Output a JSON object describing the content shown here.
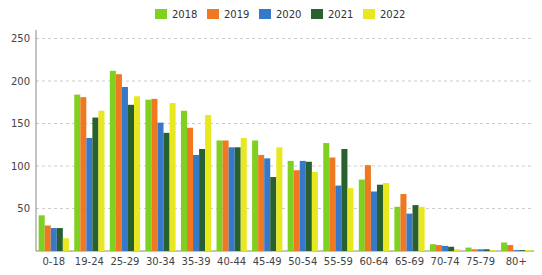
{
  "chart_data": {
    "type": "bar",
    "categories": [
      "0-18",
      "19-24",
      "25-29",
      "30-34",
      "35-39",
      "40-44",
      "45-49",
      "50-54",
      "55-59",
      "60-64",
      "65-69",
      "70-74",
      "75-79",
      "80+"
    ],
    "series": [
      {
        "name": "2018",
        "color": "#7FD020",
        "values": [
          42,
          184,
          212,
          178,
          165,
          130,
          130,
          106,
          127,
          84,
          52,
          8,
          4,
          10
        ]
      },
      {
        "name": "2019",
        "color": "#F07820",
        "values": [
          30,
          181,
          208,
          179,
          145,
          130,
          113,
          95,
          110,
          101,
          67,
          7,
          2,
          7
        ]
      },
      {
        "name": "2020",
        "color": "#3878C8",
        "values": [
          27,
          133,
          193,
          151,
          113,
          122,
          109,
          106,
          77,
          70,
          44,
          6,
          2,
          1
        ]
      },
      {
        "name": "2021",
        "color": "#286030",
        "values": [
          27,
          157,
          172,
          139,
          120,
          122,
          87,
          105,
          120,
          78,
          54,
          5,
          2,
          1
        ]
      },
      {
        "name": "2022",
        "color": "#E8E820",
        "values": [
          15,
          165,
          182,
          174,
          160,
          133,
          122,
          93,
          74,
          80,
          52,
          2,
          1,
          1
        ]
      }
    ],
    "ylim": [
      0,
      260
    ],
    "yticks": [
      50,
      100,
      150,
      200,
      250
    ],
    "grid": true,
    "legend": "top"
  }
}
